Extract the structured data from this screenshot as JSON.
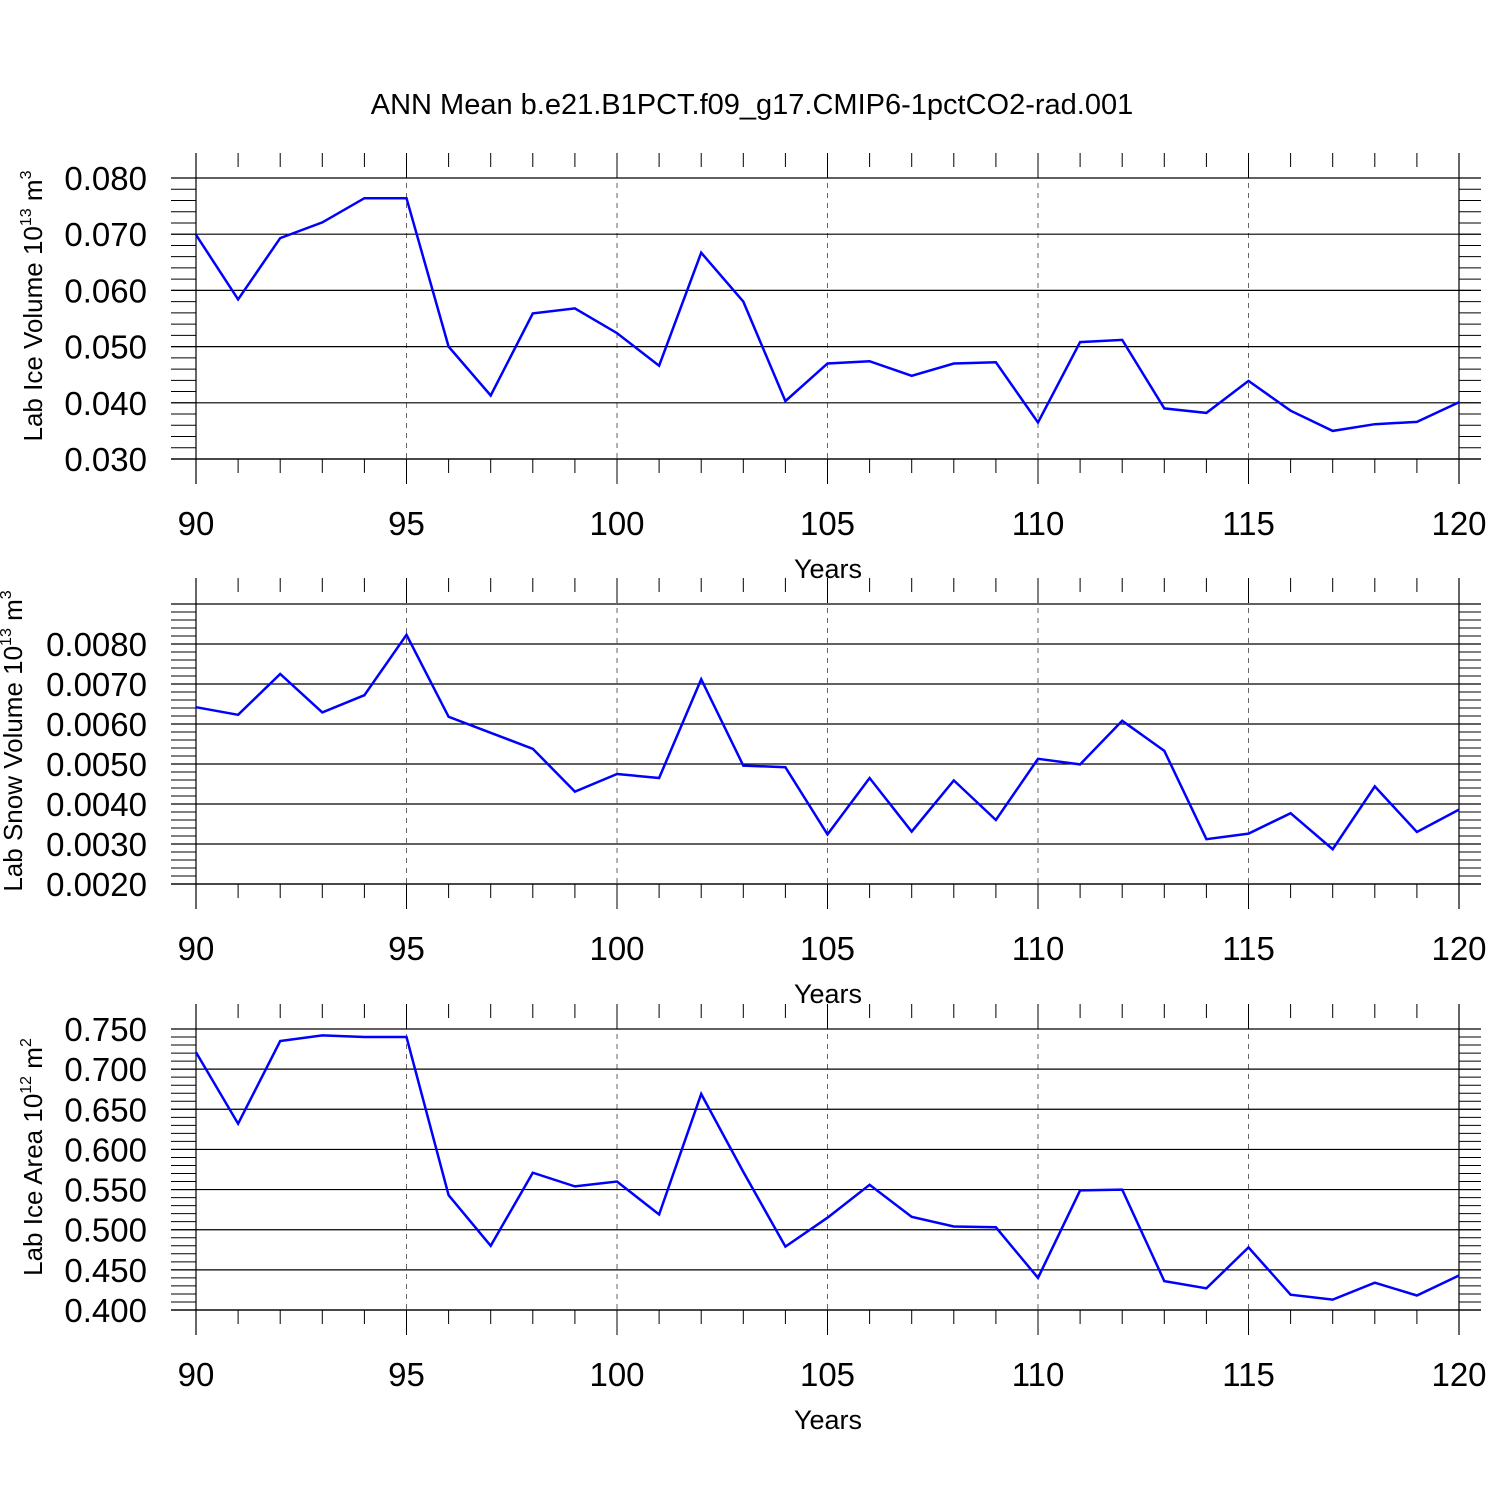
{
  "chart_data": [
    {
      "type": "line",
      "title": "ANN Mean b.e21.B1PCT.f09_g17.CMIP6-1pctCO2-rad.001",
      "ylabel_main": "Lab Ice Volume 10",
      "ylabel_exp": "13",
      "ylabel_unit": "m",
      "ylabel_unit_exp": "3",
      "xlabel": "Years",
      "xlim": [
        90,
        120
      ],
      "ylim": [
        0.03,
        0.08
      ],
      "xticks": [
        90,
        95,
        100,
        105,
        110,
        115,
        120
      ],
      "xtick_labels": [
        "90",
        "95",
        "100",
        "105",
        "110",
        "115",
        "120"
      ],
      "yticks": [
        0.03,
        0.04,
        0.05,
        0.06,
        0.07,
        0.08
      ],
      "ytick_labels": [
        "0.030",
        "0.040",
        "0.050",
        "0.060",
        "0.070",
        "0.080"
      ],
      "grid": "x-dashed",
      "line_color": "#0000ff",
      "x": [
        90,
        91,
        92,
        93,
        94,
        95,
        96,
        97,
        98,
        99,
        100,
        101,
        102,
        103,
        104,
        105,
        106,
        107,
        108,
        109,
        110,
        111,
        112,
        113,
        114,
        115,
        116,
        117,
        118,
        119,
        120
      ],
      "values": [
        0.0699,
        0.0584,
        0.0693,
        0.0721,
        0.0764,
        0.0764,
        0.05,
        0.0413,
        0.0559,
        0.0568,
        0.0524,
        0.0466,
        0.0667,
        0.058,
        0.0403,
        0.047,
        0.0474,
        0.0448,
        0.047,
        0.0472,
        0.0365,
        0.0508,
        0.0512,
        0.039,
        0.0382,
        0.0439,
        0.0386,
        0.035,
        0.0362,
        0.0366,
        0.0401
      ]
    },
    {
      "type": "line",
      "ylabel_main": "Lab Snow Volume 10",
      "ylabel_exp": "13",
      "ylabel_unit": "m",
      "ylabel_unit_exp": "3",
      "xlabel": "Years",
      "xlim": [
        90,
        120
      ],
      "ylim": [
        0.002,
        0.009
      ],
      "xticks": [
        90,
        95,
        100,
        105,
        110,
        115,
        120
      ],
      "xtick_labels": [
        "90",
        "95",
        "100",
        "105",
        "110",
        "115",
        "120"
      ],
      "yticks": [
        0.002,
        0.003,
        0.004,
        0.005,
        0.006,
        0.007,
        0.008
      ],
      "ytick_labels": [
        "0.0020",
        "0.0030",
        "0.0040",
        "0.0050",
        "0.0060",
        "0.0070",
        "0.0080"
      ],
      "grid": "x-dashed",
      "line_color": "#0000ff",
      "x": [
        90,
        91,
        92,
        93,
        94,
        95,
        96,
        97,
        98,
        99,
        100,
        101,
        102,
        103,
        104,
        105,
        106,
        107,
        108,
        109,
        110,
        111,
        112,
        113,
        114,
        115,
        116,
        117,
        118,
        119,
        120
      ],
      "values": [
        0.00642,
        0.00623,
        0.00725,
        0.00629,
        0.00672,
        0.00823,
        0.00618,
        0.00578,
        0.00538,
        0.00431,
        0.00475,
        0.00465,
        0.00712,
        0.00496,
        0.00492,
        0.00324,
        0.00465,
        0.00331,
        0.00459,
        0.0036,
        0.00513,
        0.00499,
        0.00608,
        0.00533,
        0.00312,
        0.00326,
        0.00377,
        0.00287,
        0.00444,
        0.0033,
        0.00386
      ]
    },
    {
      "type": "line",
      "ylabel_main": "Lab Ice Area 10",
      "ylabel_exp": "12",
      "ylabel_unit": "m",
      "ylabel_unit_exp": "2",
      "xlabel": "Years",
      "xlim": [
        90,
        120
      ],
      "ylim": [
        0.4,
        0.75
      ],
      "xticks": [
        90,
        95,
        100,
        105,
        110,
        115,
        120
      ],
      "xtick_labels": [
        "90",
        "95",
        "100",
        "105",
        "110",
        "115",
        "120"
      ],
      "yticks": [
        0.4,
        0.45,
        0.5,
        0.55,
        0.6,
        0.65,
        0.7,
        0.75
      ],
      "ytick_labels": [
        "0.400",
        "0.450",
        "0.500",
        "0.550",
        "0.600",
        "0.650",
        "0.700",
        "0.750"
      ],
      "grid": "x-dashed",
      "line_color": "#0000ff",
      "x": [
        90,
        91,
        92,
        93,
        94,
        95,
        96,
        97,
        98,
        99,
        100,
        101,
        102,
        103,
        104,
        105,
        106,
        107,
        108,
        109,
        110,
        111,
        112,
        113,
        114,
        115,
        116,
        117,
        118,
        119,
        120
      ],
      "values": [
        0.721,
        0.632,
        0.735,
        0.742,
        0.74,
        0.74,
        0.543,
        0.48,
        0.571,
        0.554,
        0.56,
        0.519,
        0.669,
        0.572,
        0.479,
        0.515,
        0.556,
        0.516,
        0.504,
        0.503,
        0.44,
        0.549,
        0.55,
        0.436,
        0.427,
        0.478,
        0.419,
        0.413,
        0.434,
        0.418,
        0.443
      ]
    }
  ]
}
